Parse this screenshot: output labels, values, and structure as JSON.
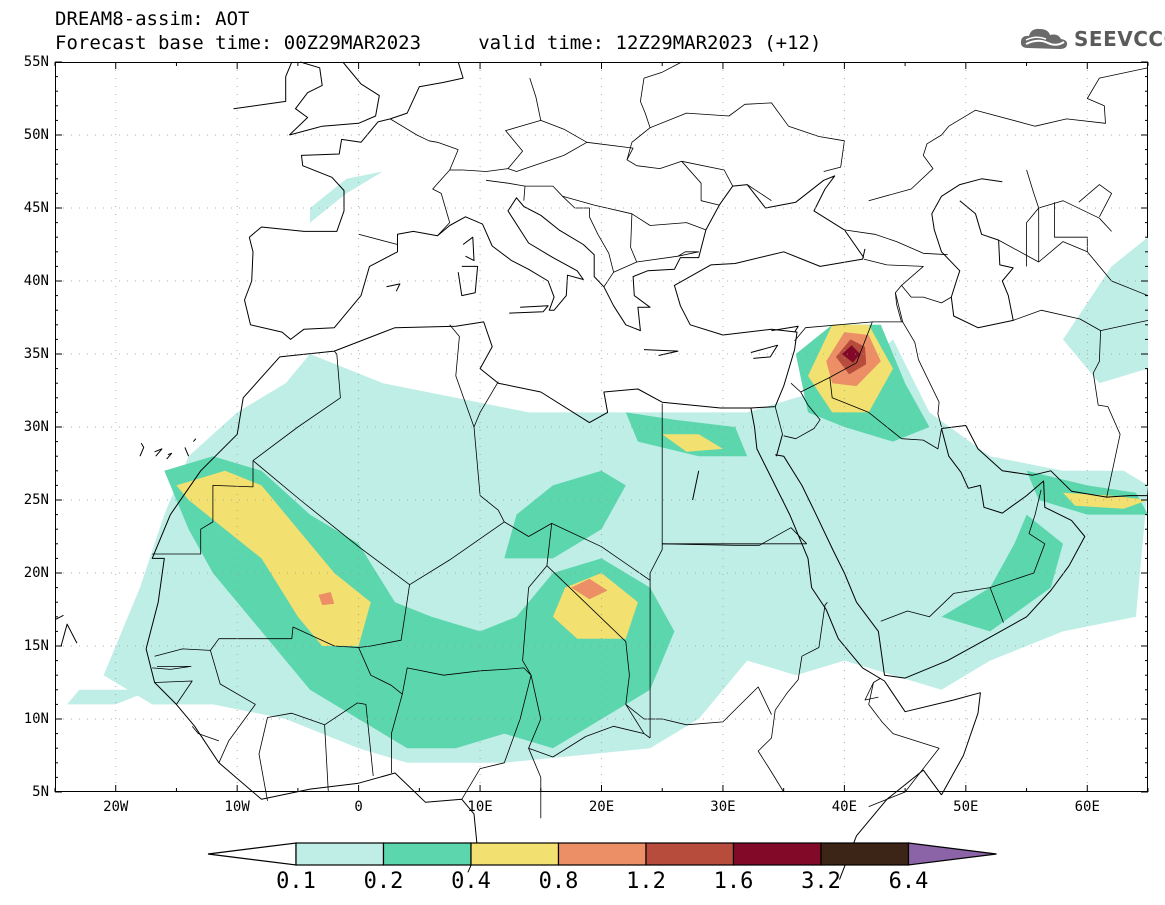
{
  "header": {
    "line1": "DREAM8-assim: AOT",
    "line2": "Forecast base time: 00Z29MAR2023     valid time: 12Z29MAR2023 (+12)"
  },
  "logo": {
    "text": "SEEVCCC",
    "icon": "cloud-logo-icon"
  },
  "map": {
    "lon_range": [
      -25,
      65
    ],
    "lat_range": [
      5,
      55
    ],
    "lat_labels": [
      "55N",
      "50N",
      "45N",
      "40N",
      "35N",
      "30N",
      "25N",
      "20N",
      "15N",
      "10N",
      "5N"
    ],
    "lat_values": [
      55,
      50,
      45,
      40,
      35,
      30,
      25,
      20,
      15,
      10,
      5
    ],
    "lon_labels": [
      "20W",
      "10W",
      "0",
      "10E",
      "20E",
      "30E",
      "40E",
      "50E",
      "60E"
    ],
    "lon_values": [
      -20,
      -10,
      0,
      10,
      20,
      30,
      40,
      50,
      60
    ]
  },
  "colorbar": {
    "labels": [
      "0.1",
      "0.2",
      "0.4",
      "0.8",
      "1.2",
      "1.6",
      "3.2",
      "6.4"
    ],
    "colors": [
      "#bfeee6",
      "#5cd6ad",
      "#f2e070",
      "#ec8f66",
      "#b84c3c",
      "#820a28",
      "#3c2516",
      "#8a64a6"
    ],
    "under_color": "#ffffff"
  }
}
